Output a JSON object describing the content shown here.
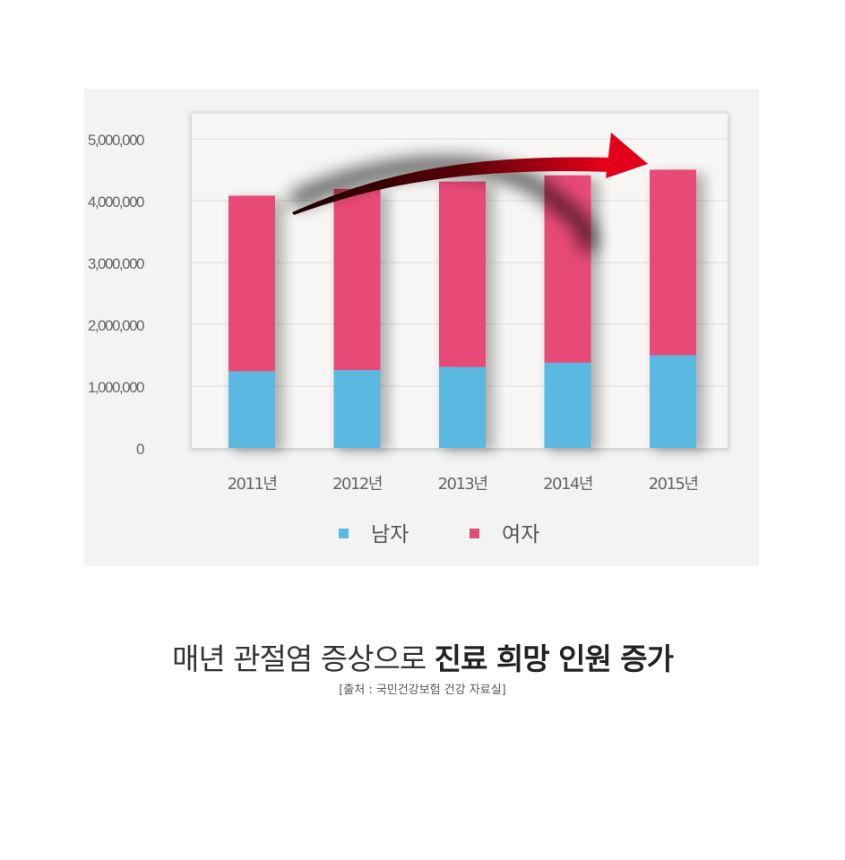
{
  "chart_data": {
    "type": "bar",
    "stacked": true,
    "categories": [
      "2011년",
      "2012년",
      "2013년",
      "2014년",
      "2015년"
    ],
    "series": [
      {
        "name": "남자",
        "color": "#5bb8e0",
        "values": [
          1240000,
          1260000,
          1310000,
          1380000,
          1500000
        ]
      },
      {
        "name": "여자",
        "color": "#e84a77",
        "values": [
          2840000,
          2930000,
          3000000,
          3030000,
          3000000
        ]
      }
    ],
    "y_ticks": [
      "0",
      "1,000,000",
      "2,000,000",
      "3,000,000",
      "4,000,000",
      "5,000,000"
    ],
    "ylim": [
      0,
      5000000
    ],
    "grid": true,
    "legend_position": "bottom",
    "trend_arrow_color": "#e3001b"
  },
  "caption": {
    "normal": "매년 관절염 증상으로 ",
    "bold": "진료 희망 인원 증가"
  },
  "source": "[출처 : 국민건강보험 건강 자료실]"
}
